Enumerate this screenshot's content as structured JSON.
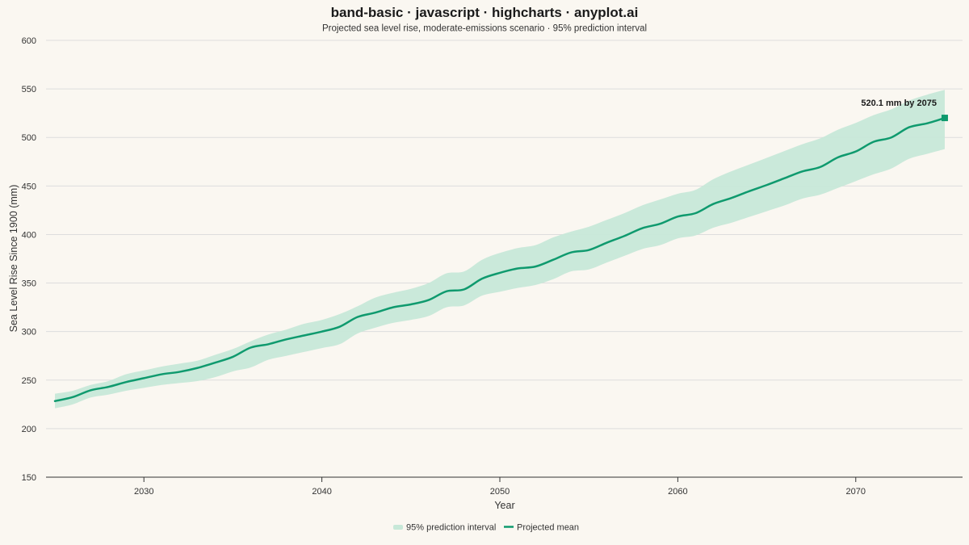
{
  "chart_data": {
    "type": "area",
    "title": "band-basic · javascript · highcharts · anyplot.ai",
    "subtitle": "Projected sea level rise, moderate-emissions scenario · 95% prediction interval",
    "xlabel": "Year",
    "ylabel": "Sea Level Rise Since 1900 (mm)",
    "xlim": [
      2024.5,
      2076
    ],
    "ylim": [
      150,
      600
    ],
    "xticks": [
      2030,
      2040,
      2050,
      2060,
      2070
    ],
    "yticks": [
      150,
      200,
      250,
      300,
      350,
      400,
      450,
      500,
      550,
      600
    ],
    "grid": true,
    "legend_position": "bottom-center",
    "colors": {
      "background": "#FAF7F1",
      "mean_line": "#0F9A6E",
      "band_fill": "#C7E8D8",
      "grid": "#DDDDDD",
      "axis": "#333333"
    },
    "x": [
      2025,
      2026,
      2027,
      2028,
      2029,
      2030,
      2031,
      2032,
      2033,
      2034,
      2035,
      2036,
      2037,
      2038,
      2039,
      2040,
      2041,
      2042,
      2043,
      2044,
      2045,
      2046,
      2047,
      2048,
      2049,
      2050,
      2051,
      2052,
      2053,
      2054,
      2055,
      2056,
      2057,
      2058,
      2059,
      2060,
      2061,
      2062,
      2063,
      2064,
      2065,
      2066,
      2067,
      2068,
      2069,
      2070,
      2071,
      2072,
      2073,
      2074,
      2075
    ],
    "series": [
      {
        "name": "95% prediction interval",
        "kind": "band",
        "low": [
          221,
          225,
          232,
          235,
          239,
          242,
          245,
          247,
          249,
          253,
          259,
          263,
          271,
          275,
          279,
          283,
          287,
          298,
          304,
          309,
          312,
          316,
          325,
          327,
          337,
          341,
          345,
          348,
          354,
          362,
          364,
          371,
          378,
          385,
          389,
          396,
          399,
          407,
          412,
          418,
          424,
          430,
          437,
          441,
          448,
          455,
          462,
          468,
          478,
          483,
          488
        ],
        "high": [
          236,
          239,
          245,
          249,
          256,
          260,
          264,
          267,
          270,
          276,
          282,
          290,
          297,
          302,
          308,
          312,
          318,
          326,
          335,
          340,
          344,
          350,
          360,
          362,
          374,
          381,
          386,
          389,
          397,
          403,
          408,
          415,
          422,
          430,
          436,
          442,
          446,
          457,
          465,
          472,
          479,
          486,
          493,
          499,
          508,
          515,
          523,
          529,
          538,
          544,
          549
        ]
      },
      {
        "name": "Projected mean",
        "kind": "line",
        "values": [
          228.4,
          232.5,
          239.5,
          243.0,
          248.0,
          252.0,
          256.0,
          258.5,
          262.5,
          268.0,
          274.0,
          283.5,
          287.0,
          292.0,
          296.0,
          300.0,
          305.0,
          315.0,
          319.5,
          325.0,
          328.0,
          332.5,
          341.5,
          343.5,
          354.5,
          360.5,
          365.0,
          367.0,
          374.0,
          381.5,
          384.0,
          391.5,
          398.5,
          406.5,
          411.0,
          418.5,
          422.0,
          431.5,
          437.5,
          444.5,
          451.0,
          458.0,
          465.0,
          469.5,
          479.5,
          485.5,
          495.5,
          500.0,
          510.5,
          514.5,
          520.1
        ]
      }
    ],
    "annotations": [
      {
        "text": "520.1 mm by 2075",
        "x": 2075,
        "y": 520.1
      }
    ]
  }
}
